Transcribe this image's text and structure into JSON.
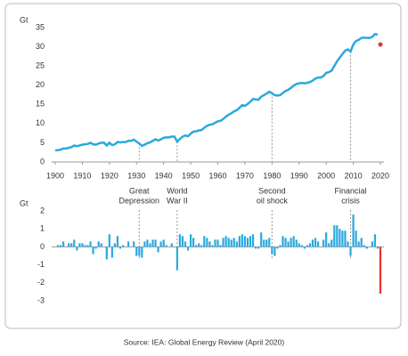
{
  "chart_data": [
    {
      "type": "line",
      "ylabel": "Gt",
      "x": [
        1900,
        1901,
        1902,
        1903,
        1904,
        1905,
        1906,
        1907,
        1908,
        1909,
        1910,
        1911,
        1912,
        1913,
        1914,
        1915,
        1916,
        1917,
        1918,
        1919,
        1920,
        1921,
        1922,
        1923,
        1924,
        1925,
        1926,
        1927,
        1928,
        1929,
        1930,
        1931,
        1932,
        1933,
        1934,
        1935,
        1936,
        1937,
        1938,
        1939,
        1940,
        1941,
        1942,
        1943,
        1944,
        1945,
        1946,
        1947,
        1948,
        1949,
        1950,
        1951,
        1952,
        1953,
        1954,
        1955,
        1956,
        1957,
        1958,
        1959,
        1960,
        1961,
        1962,
        1963,
        1964,
        1965,
        1966,
        1967,
        1968,
        1969,
        1970,
        1971,
        1972,
        1973,
        1974,
        1975,
        1976,
        1977,
        1978,
        1979,
        1980,
        1981,
        1982,
        1983,
        1984,
        1985,
        1986,
        1987,
        1988,
        1989,
        1990,
        1991,
        1992,
        1993,
        1994,
        1995,
        1996,
        1997,
        1998,
        1999,
        2000,
        2001,
        2002,
        2003,
        2004,
        2005,
        2006,
        2007,
        2008,
        2009,
        2010,
        2011,
        2012,
        2013,
        2014,
        2015,
        2016,
        2017,
        2018,
        2019,
        2020
      ],
      "series": [
        {
          "color": "#2aa9dd",
          "values": [
            3.0,
            3.1,
            3.2,
            3.5,
            3.5,
            3.7,
            3.9,
            4.3,
            4.1,
            4.3,
            4.5,
            4.6,
            4.7,
            5.0,
            4.6,
            4.5,
            4.8,
            5.0,
            5.0,
            4.3,
            5.0,
            4.4,
            4.6,
            5.2,
            5.1,
            5.2,
            5.2,
            5.5,
            5.5,
            5.8,
            5.3,
            4.8,
            4.2,
            4.5,
            4.9,
            5.1,
            5.5,
            5.9,
            5.6,
            5.9,
            6.3,
            6.4,
            6.4,
            6.6,
            6.6,
            5.3,
            6.0,
            6.6,
            6.9,
            6.7,
            7.4,
            7.9,
            8.0,
            8.2,
            8.3,
            8.9,
            9.4,
            9.7,
            9.8,
            10.2,
            10.6,
            10.7,
            11.2,
            11.8,
            12.3,
            12.7,
            13.2,
            13.5,
            14.1,
            14.8,
            14.6,
            15.1,
            15.7,
            16.4,
            16.3,
            16.2,
            17.0,
            17.4,
            17.8,
            18.3,
            17.9,
            17.4,
            17.3,
            17.4,
            18.0,
            18.5,
            18.8,
            19.3,
            19.9,
            20.3,
            20.5,
            20.6,
            20.5,
            20.6,
            20.8,
            21.2,
            21.7,
            22.0,
            22.0,
            22.4,
            23.2,
            23.4,
            23.8,
            25.0,
            26.2,
            27.2,
            28.1,
            29.0,
            29.3,
            28.8,
            30.6,
            31.5,
            31.8,
            32.3,
            32.4,
            32.3,
            32.3,
            32.6,
            33.3,
            33.2,
            null
          ]
        },
        {
          "color": "#e3342b",
          "marker": true,
          "values": [
            null,
            null,
            null,
            null,
            null,
            null,
            null,
            null,
            null,
            null,
            null,
            null,
            null,
            null,
            null,
            null,
            null,
            null,
            null,
            null,
            null,
            null,
            null,
            null,
            null,
            null,
            null,
            null,
            null,
            null,
            null,
            null,
            null,
            null,
            null,
            null,
            null,
            null,
            null,
            null,
            null,
            null,
            null,
            null,
            null,
            null,
            null,
            null,
            null,
            null,
            null,
            null,
            null,
            null,
            null,
            null,
            null,
            null,
            null,
            null,
            null,
            null,
            null,
            null,
            null,
            null,
            null,
            null,
            null,
            null,
            null,
            null,
            null,
            null,
            null,
            null,
            null,
            null,
            null,
            null,
            null,
            null,
            null,
            null,
            null,
            null,
            null,
            null,
            null,
            null,
            null,
            null,
            null,
            null,
            null,
            null,
            null,
            null,
            null,
            null,
            null,
            null,
            null,
            null,
            null,
            null,
            null,
            null,
            null,
            null,
            null,
            null,
            null,
            null,
            null,
            null,
            null,
            null,
            null,
            null,
            30.6
          ]
        }
      ],
      "xlim": [
        1900,
        2020
      ],
      "xticks": [
        1900,
        1910,
        1920,
        1930,
        1940,
        1950,
        1960,
        1970,
        1980,
        1990,
        2000,
        2010,
        2020
      ],
      "ylim": [
        0,
        35
      ],
      "yticks": [
        0,
        5,
        10,
        15,
        20,
        25,
        30,
        35
      ],
      "annotations": [
        {
          "x": 1931,
          "lines": [
            "Great",
            "Depression"
          ]
        },
        {
          "x": 1945,
          "lines": [
            "World",
            "War II"
          ]
        },
        {
          "x": 1980,
          "lines": [
            "Second",
            "oil shock"
          ]
        },
        {
          "x": 2009,
          "lines": [
            "Financial",
            "crisis"
          ]
        }
      ]
    },
    {
      "type": "bar",
      "ylabel": "Gt",
      "x": [
        1900,
        1901,
        1902,
        1903,
        1904,
        1905,
        1906,
        1907,
        1908,
        1909,
        1910,
        1911,
        1912,
        1913,
        1914,
        1915,
        1916,
        1917,
        1918,
        1919,
        1920,
        1921,
        1922,
        1923,
        1924,
        1925,
        1926,
        1927,
        1928,
        1929,
        1930,
        1931,
        1932,
        1933,
        1934,
        1935,
        1936,
        1937,
        1938,
        1939,
        1940,
        1941,
        1942,
        1943,
        1944,
        1945,
        1946,
        1947,
        1948,
        1949,
        1950,
        1951,
        1952,
        1953,
        1954,
        1955,
        1956,
        1957,
        1958,
        1959,
        1960,
        1961,
        1962,
        1963,
        1964,
        1965,
        1966,
        1967,
        1968,
        1969,
        1970,
        1971,
        1972,
        1973,
        1974,
        1975,
        1976,
        1977,
        1978,
        1979,
        1980,
        1981,
        1982,
        1983,
        1984,
        1985,
        1986,
        1987,
        1988,
        1989,
        1990,
        1991,
        1992,
        1993,
        1994,
        1995,
        1996,
        1997,
        1998,
        1999,
        2000,
        2001,
        2002,
        2003,
        2004,
        2005,
        2006,
        2007,
        2008,
        2009,
        2010,
        2011,
        2012,
        2013,
        2014,
        2015,
        2016,
        2017,
        2018,
        2019,
        2020
      ],
      "series": [
        {
          "color": "#2aa9dd",
          "values": [
            null,
            0.1,
            0.1,
            0.3,
            0,
            0.2,
            0.2,
            0.4,
            -0.2,
            0.2,
            0.2,
            0.1,
            0.1,
            0.3,
            -0.4,
            -0.1,
            0.3,
            0.2,
            0,
            -0.7,
            0.7,
            -0.6,
            0.2,
            0.6,
            -0.1,
            0.1,
            0,
            0.3,
            0,
            0.3,
            -0.5,
            -0.5,
            -0.6,
            0.3,
            0.4,
            0.2,
            0.4,
            0.4,
            -0.3,
            0.3,
            0.4,
            0.1,
            0,
            0.2,
            0,
            -1.3,
            0.7,
            0.6,
            0.3,
            -0.2,
            0.7,
            0.5,
            0.1,
            0.2,
            0.1,
            0.6,
            0.5,
            0.3,
            0.1,
            0.4,
            0.4,
            0.1,
            0.5,
            0.6,
            0.5,
            0.4,
            0.5,
            0.3,
            0.6,
            0.7,
            0.6,
            0.5,
            0.6,
            0.7,
            -0.1,
            -0.1,
            0.8,
            0.4,
            0.4,
            0.5,
            -0.4,
            -0.5,
            -0.1,
            0.1,
            0.6,
            0.5,
            0.3,
            0.5,
            0.6,
            0.4,
            0.2,
            0.1,
            -0.1,
            0.1,
            0.2,
            0.4,
            0.5,
            0.3,
            0,
            0.4,
            0.8,
            0.2,
            0.4,
            1.2,
            1.2,
            1.0,
            0.9,
            0.9,
            0.3,
            -0.5,
            1.8,
            0.9,
            0.3,
            0.5,
            0.1,
            -0.1,
            0,
            0.3,
            0.7,
            -0.1,
            null
          ]
        },
        {
          "color": "#e3342b",
          "values": [
            null,
            null,
            null,
            null,
            null,
            null,
            null,
            null,
            null,
            null,
            null,
            null,
            null,
            null,
            null,
            null,
            null,
            null,
            null,
            null,
            null,
            null,
            null,
            null,
            null,
            null,
            null,
            null,
            null,
            null,
            null,
            null,
            null,
            null,
            null,
            null,
            null,
            null,
            null,
            null,
            null,
            null,
            null,
            null,
            null,
            null,
            null,
            null,
            null,
            null,
            null,
            null,
            null,
            null,
            null,
            null,
            null,
            null,
            null,
            null,
            null,
            null,
            null,
            null,
            null,
            null,
            null,
            null,
            null,
            null,
            null,
            null,
            null,
            null,
            null,
            null,
            null,
            null,
            null,
            null,
            null,
            null,
            null,
            null,
            null,
            null,
            null,
            null,
            null,
            null,
            null,
            null,
            null,
            null,
            null,
            null,
            null,
            null,
            null,
            null,
            null,
            null,
            null,
            null,
            null,
            null,
            null,
            null,
            null,
            null,
            null,
            null,
            null,
            null,
            null,
            null,
            null,
            null,
            null,
            null,
            -2.6
          ]
        }
      ],
      "xlim": [
        1900,
        2020
      ],
      "ylim": [
        -3,
        2
      ],
      "yticks": [
        2,
        1,
        0,
        -1,
        -2,
        -3
      ]
    }
  ],
  "source": "Source: IEA: Global Energy Review (April 2020)"
}
